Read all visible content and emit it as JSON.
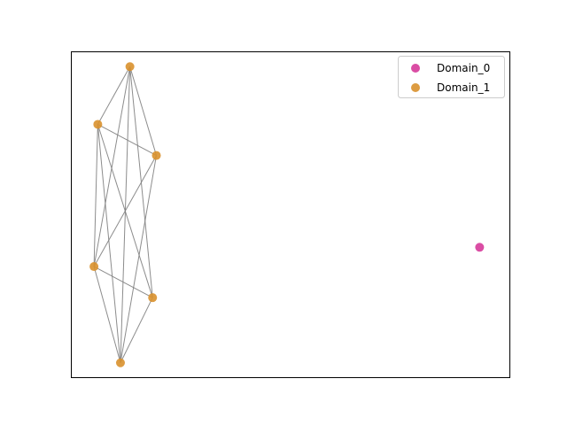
{
  "chart_data": {
    "type": "scatter",
    "title": "",
    "xlabel": "",
    "ylabel": "",
    "xlim": [
      -0.08,
      1.08
    ],
    "ylim": [
      -0.05,
      1.05
    ],
    "axes_ticks": false,
    "grid": false,
    "legend_position": "top-right",
    "edge_color": "#808080",
    "series": [
      {
        "name": "Domain_0",
        "color": "#d63a9a",
        "points": [
          {
            "id": "n6",
            "x": 1.0,
            "y": 0.39
          }
        ]
      },
      {
        "name": "Domain_1",
        "color": "#d9912e",
        "points": [
          {
            "id": "n0",
            "x": 0.075,
            "y": 1.0
          },
          {
            "id": "n1",
            "x": -0.01,
            "y": 0.805
          },
          {
            "id": "n2",
            "x": 0.145,
            "y": 0.7
          },
          {
            "id": "n3",
            "x": -0.02,
            "y": 0.325
          },
          {
            "id": "n4",
            "x": 0.135,
            "y": 0.22
          },
          {
            "id": "n5",
            "x": 0.05,
            "y": 0.0
          }
        ]
      }
    ],
    "edges": [
      [
        "n0",
        "n1"
      ],
      [
        "n0",
        "n2"
      ],
      [
        "n0",
        "n3"
      ],
      [
        "n0",
        "n4"
      ],
      [
        "n0",
        "n5"
      ],
      [
        "n1",
        "n2"
      ],
      [
        "n1",
        "n3"
      ],
      [
        "n1",
        "n4"
      ],
      [
        "n1",
        "n5"
      ],
      [
        "n2",
        "n3"
      ],
      [
        "n2",
        "n5"
      ],
      [
        "n3",
        "n4"
      ],
      [
        "n3",
        "n5"
      ],
      [
        "n4",
        "n5"
      ]
    ]
  }
}
